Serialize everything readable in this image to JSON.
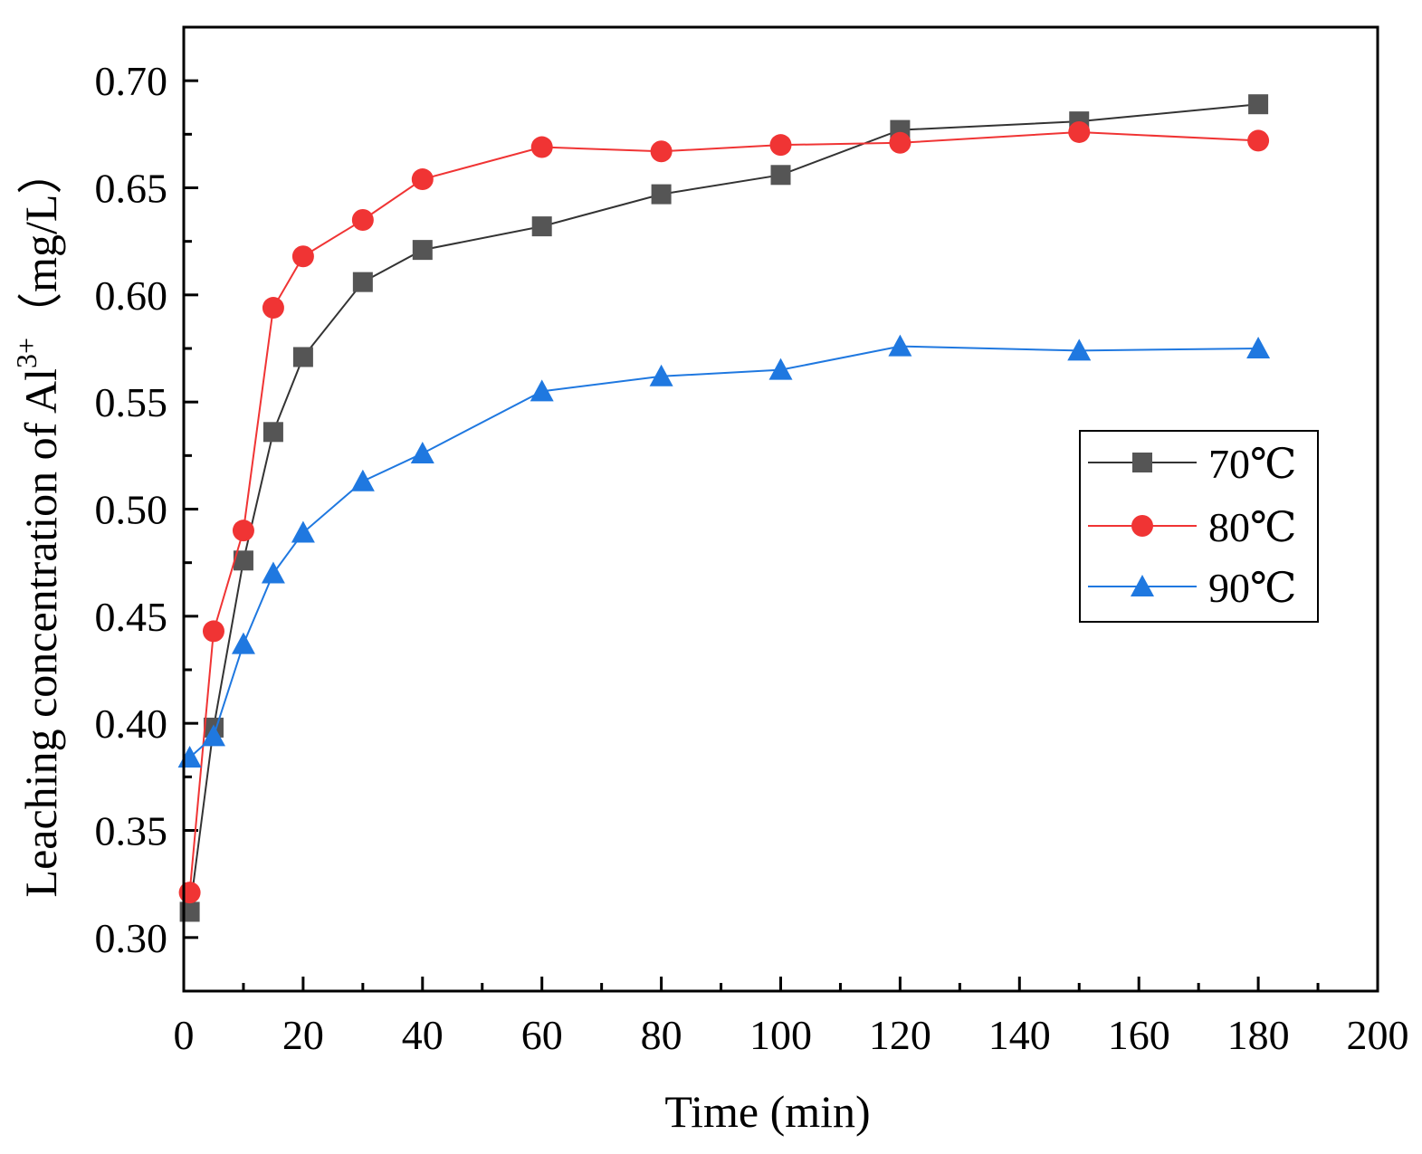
{
  "chart_data": {
    "type": "line",
    "title": "",
    "xlabel": "Time (min)",
    "ylabel": {
      "main": "Leaching concentration of Al",
      "superscript": "3+",
      "unit": "（mg/L）"
    },
    "xlim": [
      0,
      200
    ],
    "ylim": [
      0.275,
      0.725
    ],
    "x_ticks": [
      0,
      20,
      40,
      60,
      80,
      100,
      120,
      140,
      160,
      180,
      200
    ],
    "y_ticks": [
      0.3,
      0.35,
      0.4,
      0.45,
      0.5,
      0.55,
      0.6,
      0.65,
      0.7
    ],
    "x_tick_labels": [
      "0",
      "20",
      "40",
      "60",
      "80",
      "100",
      "120",
      "140",
      "160",
      "180",
      "200"
    ],
    "y_tick_labels": [
      "0.30",
      "0.35",
      "0.40",
      "0.45",
      "0.50",
      "0.55",
      "0.60",
      "0.65",
      "0.70"
    ],
    "grid": false,
    "legend_position": "right",
    "x": [
      1,
      5,
      10,
      15,
      20,
      30,
      40,
      60,
      80,
      100,
      120,
      150,
      180
    ],
    "series": [
      {
        "name": "70℃",
        "marker": "square",
        "color": "#555555",
        "line_color": "#333333",
        "values": [
          0.312,
          0.398,
          0.476,
          0.536,
          0.571,
          0.606,
          0.621,
          0.632,
          0.647,
          0.656,
          0.677,
          0.681,
          0.689
        ]
      },
      {
        "name": "80℃",
        "marker": "circle",
        "color": "#f03434",
        "line_color": "#f03434",
        "values": [
          0.321,
          0.443,
          0.49,
          0.594,
          0.618,
          0.635,
          0.654,
          0.669,
          0.667,
          0.67,
          0.671,
          0.676,
          0.672
        ]
      },
      {
        "name": "90℃",
        "marker": "triangle",
        "color": "#1f78e0",
        "line_color": "#1f78e0",
        "values": [
          0.384,
          0.394,
          0.437,
          0.47,
          0.489,
          0.513,
          0.526,
          0.555,
          0.562,
          0.565,
          0.576,
          0.574,
          0.575
        ]
      }
    ]
  }
}
